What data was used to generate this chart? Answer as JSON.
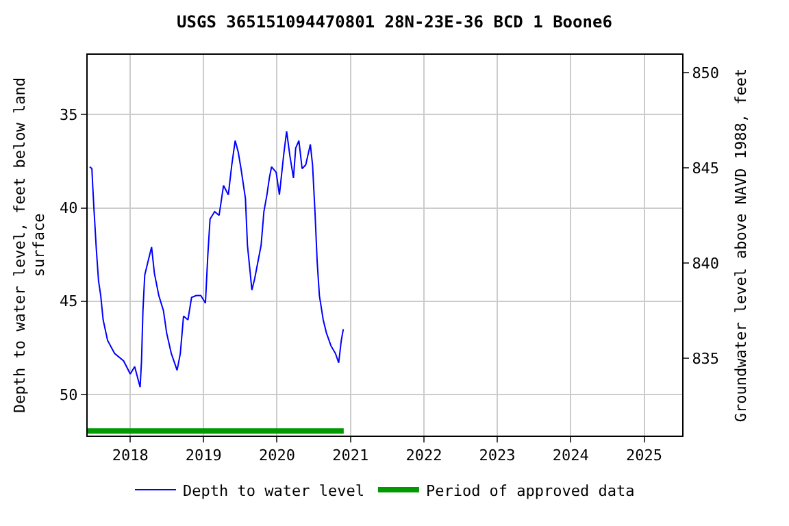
{
  "chart_data": {
    "type": "line",
    "title": "USGS 365151094470801 28N-23E-36 BCD 1 Boone6",
    "ylabel": "Depth to water level, feet below land surface",
    "y2label": "Groundwater level above NAVD 1988, feet",
    "xlim": [
      "2017-06-03",
      "2025-07-09"
    ],
    "xticks": [
      "2018",
      "2019",
      "2020",
      "2021",
      "2022",
      "2023",
      "2024",
      "2025"
    ],
    "ylim": [
      52.2,
      31.8
    ],
    "yticks": [
      35,
      40,
      45,
      50
    ],
    "y2lim": [
      830.95,
      850.93
    ],
    "y2ticks": [
      835,
      840,
      845,
      850
    ],
    "grid": true,
    "legend": "bottom",
    "series": [
      {
        "name": "Depth to water level",
        "color": "#0000ff",
        "x": [
          "2017-06-13",
          "2017-06-24",
          "2017-06-28",
          "2017-07-04",
          "2017-07-16",
          "2017-07-27",
          "2017-08-07",
          "2017-08-19",
          "2017-09-10",
          "2017-10-15",
          "2017-11-29",
          "2018-01-01",
          "2018-01-23",
          "2018-02-19",
          "2018-02-26",
          "2018-03-05",
          "2018-03-14",
          "2018-04-01",
          "2018-04-17",
          "2018-05-01",
          "2018-05-23",
          "2018-06-15",
          "2018-07-01",
          "2018-07-24",
          "2018-08-22",
          "2018-09-07",
          "2018-09-23",
          "2018-10-15",
          "2018-11-02",
          "2018-11-25",
          "2018-12-18",
          "2019-01-10",
          "2019-01-22",
          "2019-02-02",
          "2019-02-25",
          "2019-03-19",
          "2019-04-10",
          "2019-05-04",
          "2019-05-21",
          "2019-06-07",
          "2019-06-22",
          "2019-07-06",
          "2019-07-28",
          "2019-08-07",
          "2019-08-20",
          "2019-08-29",
          "2019-09-12",
          "2019-09-28",
          "2019-10-14",
          "2019-10-28",
          "2019-11-12",
          "2019-11-24",
          "2019-12-05",
          "2019-12-28",
          "2020-01-13",
          "2020-01-27",
          "2020-02-04",
          "2020-02-18",
          "2020-03-05",
          "2020-03-23",
          "2020-04-03",
          "2020-04-19",
          "2020-05-05",
          "2020-05-23",
          "2020-06-15",
          "2020-06-26",
          "2020-07-08",
          "2020-07-19",
          "2020-07-30",
          "2020-08-18",
          "2020-09-03",
          "2020-09-26",
          "2020-10-18",
          "2020-11-03",
          "2020-11-16",
          "2020-11-26"
        ],
        "values": [
          37.8,
          37.9,
          38.8,
          40.0,
          42.2,
          43.9,
          44.7,
          46.0,
          47.1,
          47.8,
          48.2,
          48.9,
          48.5,
          49.6,
          48.2,
          45.5,
          43.6,
          42.8,
          42.1,
          43.5,
          44.7,
          45.5,
          46.7,
          47.8,
          48.7,
          47.8,
          45.8,
          46.0,
          44.8,
          44.7,
          44.7,
          45.1,
          42.5,
          40.6,
          40.2,
          40.4,
          38.8,
          39.3,
          37.7,
          36.4,
          37.0,
          37.9,
          39.5,
          42.0,
          43.4,
          44.4,
          43.8,
          42.9,
          42.0,
          40.2,
          39.3,
          38.4,
          37.8,
          38.1,
          39.3,
          37.9,
          37.1,
          35.9,
          37.2,
          38.4,
          36.8,
          36.4,
          37.9,
          37.7,
          36.6,
          37.7,
          40.2,
          42.9,
          44.7,
          46.0,
          46.7,
          47.4,
          47.8,
          48.3,
          47.1,
          46.5
        ]
      },
      {
        "name": "Period of approved data",
        "color": "#009900",
        "x": [
          "2017-06-03",
          "2020-11-28"
        ],
        "values": [
          51.95,
          51.95
        ]
      }
    ]
  }
}
